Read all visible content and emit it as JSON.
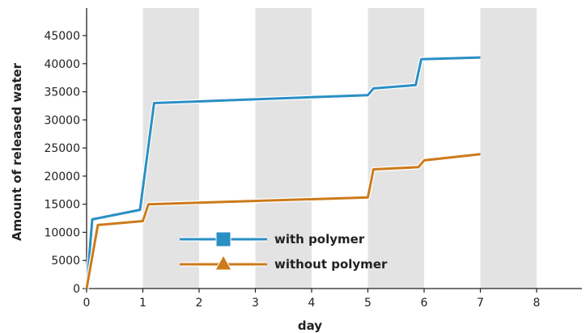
{
  "chart_data": {
    "type": "line",
    "xlabel": "day",
    "ylabel": "Amount of released water",
    "xlim": [
      0,
      9
    ],
    "ylim": [
      0,
      48000
    ],
    "x_ticks": [
      {
        "value": 0,
        "label": "0"
      },
      {
        "value": 1,
        "label": "1"
      },
      {
        "value": 2,
        "label": "2"
      },
      {
        "value": 3,
        "label": "3"
      },
      {
        "value": 4,
        "label": "4"
      },
      {
        "value": 5,
        "label": "5"
      },
      {
        "value": 6,
        "label": "6"
      },
      {
        "value": 7,
        "label": "7"
      },
      {
        "value": 8,
        "label": "8"
      }
    ],
    "y_ticks": [
      {
        "value": 0,
        "label": "0"
      },
      {
        "value": 5000,
        "label": "5000"
      },
      {
        "value": 10000,
        "label": "10000"
      },
      {
        "value": 15000,
        "label": "15000"
      },
      {
        "value": 20000,
        "label": "20000"
      },
      {
        "value": 25000,
        "label": "25000"
      },
      {
        "value": 30000,
        "label": "30000"
      },
      {
        "value": 35000,
        "label": "35000"
      },
      {
        "value": 40000,
        "label": "40000"
      },
      {
        "value": 45000,
        "label": "45000"
      }
    ],
    "shaded_bands": [
      [
        1,
        2
      ],
      [
        3,
        4
      ],
      [
        5,
        6
      ],
      [
        7,
        8
      ]
    ],
    "grid": false,
    "legend_position": "bottom-center",
    "series": [
      {
        "name": "with polymer",
        "color": "#2a8fc4",
        "marker": "square",
        "points": [
          [
            0,
            0
          ],
          [
            0.1,
            12300
          ],
          [
            0.95,
            14000
          ],
          [
            1.2,
            33000
          ],
          [
            5.0,
            34400
          ],
          [
            5.1,
            35600
          ],
          [
            5.85,
            36200
          ],
          [
            5.95,
            40800
          ],
          [
            7.0,
            41100
          ]
        ]
      },
      {
        "name": "without polymer",
        "color": "#cc7a1a",
        "marker": "triangle",
        "points": [
          [
            0,
            0
          ],
          [
            0.2,
            11300
          ],
          [
            1.0,
            12000
          ],
          [
            1.1,
            15000
          ],
          [
            5.0,
            16200
          ],
          [
            5.1,
            21200
          ],
          [
            5.9,
            21600
          ],
          [
            6.0,
            22800
          ],
          [
            7.0,
            23900
          ]
        ]
      }
    ]
  }
}
